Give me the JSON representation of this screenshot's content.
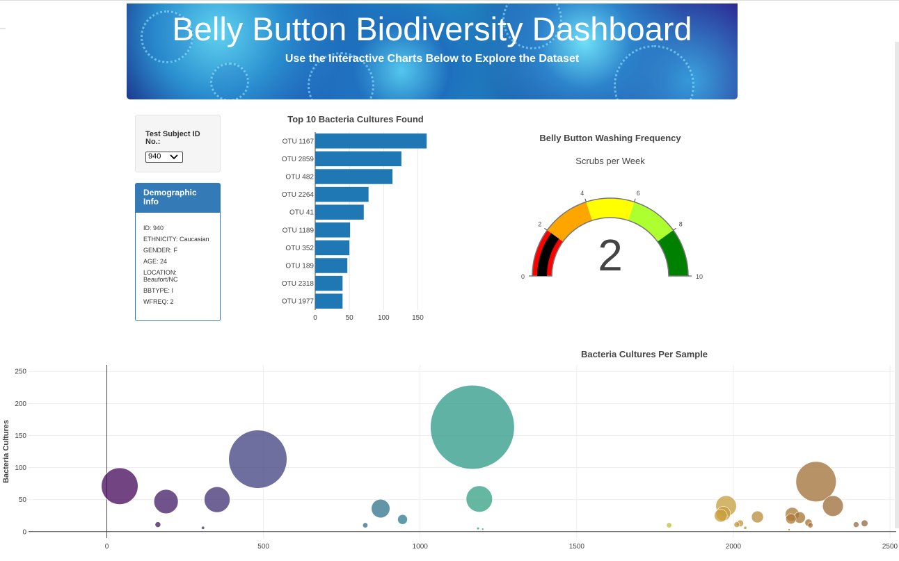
{
  "banner": {
    "title": "Belly Button Biodiversity Dashboard",
    "subtitle": "Use the Interactive Charts Below to Explore the Dataset"
  },
  "selector": {
    "label": "Test Subject ID No.:",
    "value": "940"
  },
  "demographics": {
    "title": "Demographic Info",
    "lines": [
      "ID: 940",
      "ETHNICITY: Caucasian",
      "GENDER: F",
      "AGE: 24",
      "LOCATION: Beaufort/NC",
      "BBTYPE: I",
      "WFREQ: 2"
    ]
  },
  "chart_data": [
    {
      "type": "bar",
      "orientation": "horizontal",
      "title": "Top 10 Bacteria Cultures Found",
      "categories": [
        "OTU 1167",
        "OTU 2859",
        "OTU 482",
        "OTU 2264",
        "OTU 41",
        "OTU 1189",
        "OTU 352",
        "OTU 189",
        "OTU 2318",
        "OTU 1977"
      ],
      "values": [
        163,
        126,
        113,
        78,
        71,
        51,
        50,
        47,
        40,
        40
      ],
      "xlim": [
        0,
        175
      ],
      "xticks": [
        0,
        50,
        100,
        150
      ],
      "grid": true,
      "color": "#1f77b4"
    },
    {
      "type": "gauge",
      "title": "Belly Button Washing Frequency",
      "subtitle": "Scrubs per Week",
      "value": 2,
      "range": [
        0,
        10
      ],
      "ticks": [
        0,
        2,
        4,
        6,
        8,
        10
      ],
      "steps": [
        {
          "range": [
            0,
            2
          ],
          "color": "#ff0000"
        },
        {
          "range": [
            2,
            4
          ],
          "color": "#ffa500"
        },
        {
          "range": [
            4,
            6
          ],
          "color": "#ffff00"
        },
        {
          "range": [
            6,
            8
          ],
          "color": "#adff2f"
        },
        {
          "range": [
            8,
            10
          ],
          "color": "#008000"
        }
      ],
      "bar_color": "#000000"
    },
    {
      "type": "scatter",
      "subtype": "bubble",
      "title": "Bacteria Cultures Per Sample",
      "ylabel": "Bacteria Cultures",
      "xlabel": "",
      "xlim": [
        -250,
        2520
      ],
      "ylim": [
        -10,
        260
      ],
      "xticks": [
        0,
        500,
        1000,
        1500,
        2000,
        2500
      ],
      "yticks": [
        0,
        50,
        100,
        150,
        200,
        250
      ],
      "grid": true,
      "points": [
        {
          "x": 41,
          "y": 71
        },
        {
          "x": 163,
          "y": 11
        },
        {
          "x": 189,
          "y": 47
        },
        {
          "x": 307,
          "y": 6
        },
        {
          "x": 352,
          "y": 50
        },
        {
          "x": 482,
          "y": 113
        },
        {
          "x": 825,
          "y": 10
        },
        {
          "x": 874,
          "y": 36
        },
        {
          "x": 944,
          "y": 19
        },
        {
          "x": 1167,
          "y": 163
        },
        {
          "x": 1189,
          "y": 51
        },
        {
          "x": 1185,
          "y": 5
        },
        {
          "x": 1200,
          "y": 4
        },
        {
          "x": 1795,
          "y": 10
        },
        {
          "x": 1960,
          "y": 25
        },
        {
          "x": 1968,
          "y": 28
        },
        {
          "x": 1977,
          "y": 40
        },
        {
          "x": 2011,
          "y": 11
        },
        {
          "x": 2022,
          "y": 13
        },
        {
          "x": 2038,
          "y": 6
        },
        {
          "x": 2077,
          "y": 23
        },
        {
          "x": 2178,
          "y": 3
        },
        {
          "x": 2184,
          "y": 20
        },
        {
          "x": 2188,
          "y": 27
        },
        {
          "x": 2212,
          "y": 22
        },
        {
          "x": 2240,
          "y": 14
        },
        {
          "x": 2246,
          "y": 10
        },
        {
          "x": 2264,
          "y": 78
        },
        {
          "x": 2318,
          "y": 40
        },
        {
          "x": 2392,
          "y": 11
        },
        {
          "x": 2419,
          "y": 13
        }
      ]
    }
  ]
}
